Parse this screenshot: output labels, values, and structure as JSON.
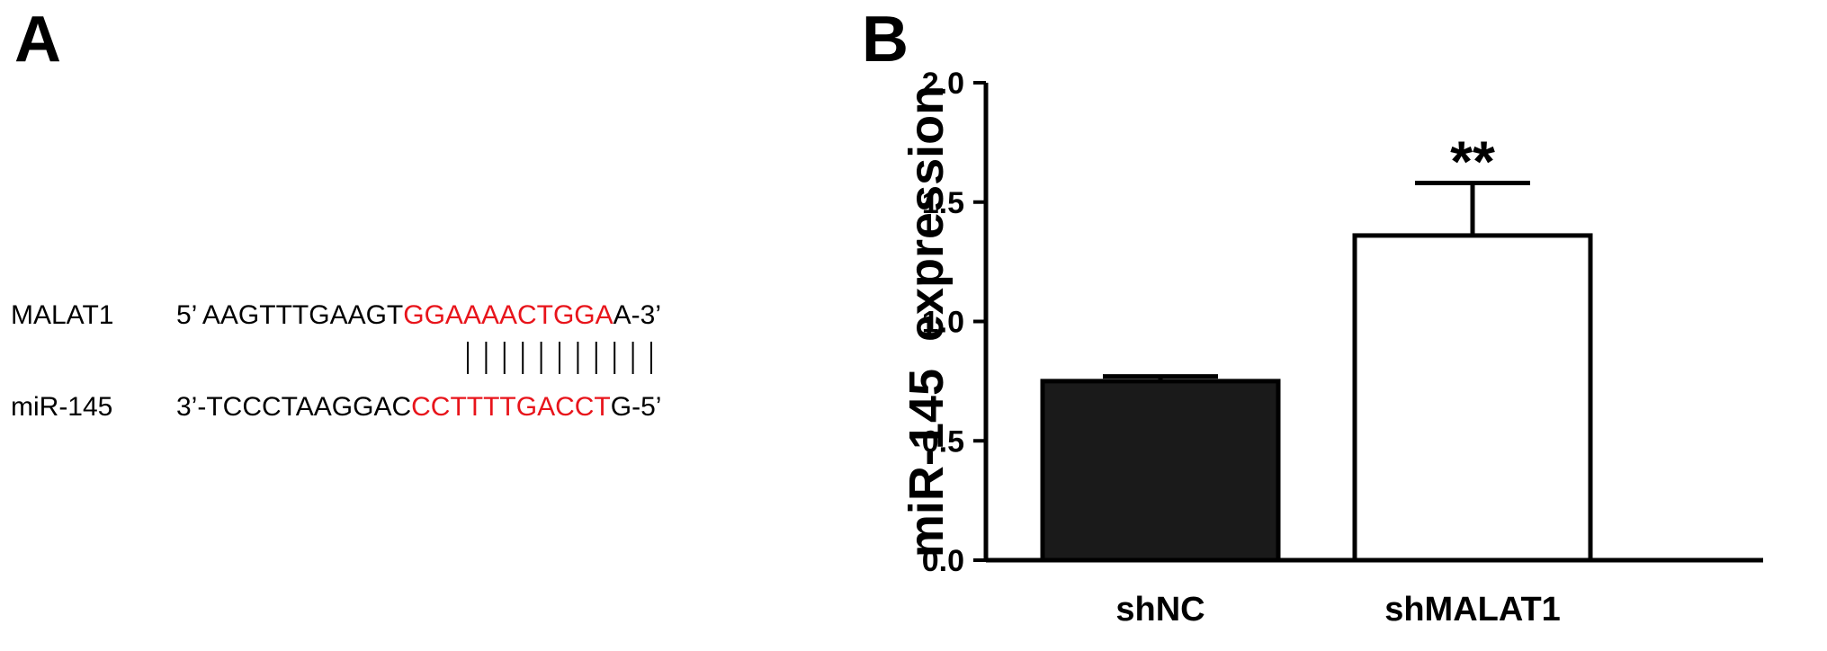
{
  "panel_a": {
    "label": "A",
    "malat1": {
      "name": "MALAT1",
      "prefix": "5’  AAGTTTGAAGT",
      "match": "GGAAAACTGGA",
      "suffix": "A-3’"
    },
    "mir": {
      "name": "miR-145",
      "prefix": "3’-TCCCTAAGGAC",
      "match": "CCTTTTGACCT",
      "suffix": "G-5’"
    },
    "pair_count": 11,
    "match_color": "#e8141b"
  },
  "panel_b": {
    "label": "B"
  },
  "chart_data": {
    "type": "bar",
    "categories": [
      "shNC",
      "shMALAT1"
    ],
    "values": [
      0.75,
      1.36
    ],
    "errors": [
      0.02,
      0.22
    ],
    "bar_fill": [
      "#1a1a1a",
      "#ffffff"
    ],
    "significance": [
      "",
      "**"
    ],
    "ylabel": "miR-145  expression",
    "xlabel": "",
    "ylim": [
      0,
      2.0
    ],
    "yticks": [
      "0.0",
      "0.5",
      "1.0",
      "1.5",
      "2.0"
    ],
    "grid": false
  }
}
